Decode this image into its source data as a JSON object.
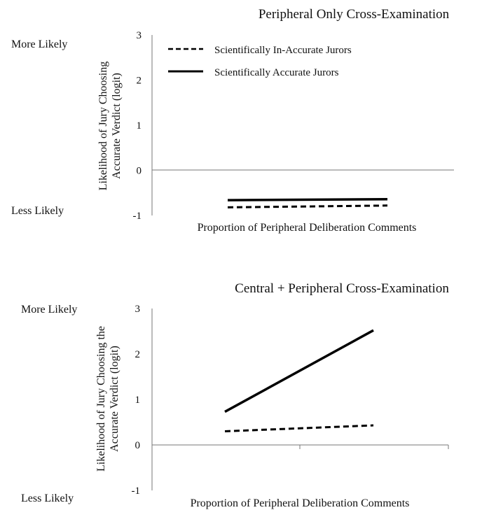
{
  "chart_data": [
    {
      "type": "line",
      "title": "Peripheral Only Cross-Examination",
      "xlabel": "Proportion of Peripheral Deliberation Comments",
      "ylabel": [
        "Likelihood of Jury Choosing",
        "Accurate Verdict (logit)"
      ],
      "y_annotations": {
        "top": "More Likely",
        "bottom": "Less Likely"
      },
      "ylim": [
        -1,
        3
      ],
      "yticks": [
        "3",
        "2",
        "1",
        "0",
        "-1"
      ],
      "x": [
        0,
        1
      ],
      "legend_position": "top-left",
      "series": [
        {
          "name": "Scientifically In-Accurate Jurors",
          "style": "dashed",
          "values": [
            -0.82,
            -0.78
          ]
        },
        {
          "name": "Scientifically Accurate Jurors",
          "style": "solid",
          "values": [
            -0.66,
            -0.64
          ]
        }
      ]
    },
    {
      "type": "line",
      "title": "Central + Peripheral Cross-Examination",
      "xlabel": "Proportion of Peripheral Deliberation Comments",
      "ylabel": [
        "Likelihood of Jury Choosing the",
        "Accurate Verdict (logit)"
      ],
      "y_annotations": {
        "top": "More Likely",
        "bottom": "Less Likely"
      },
      "ylim": [
        -1,
        3
      ],
      "yticks": [
        "3",
        "2",
        "1",
        "0",
        "-1"
      ],
      "x": [
        0,
        1
      ],
      "series": [
        {
          "style": "dashed",
          "values": [
            0.3,
            0.43
          ]
        },
        {
          "style": "solid",
          "values": [
            0.73,
            2.52
          ]
        }
      ]
    }
  ],
  "colors": {
    "line": "#000000",
    "axis": "#777777"
  }
}
